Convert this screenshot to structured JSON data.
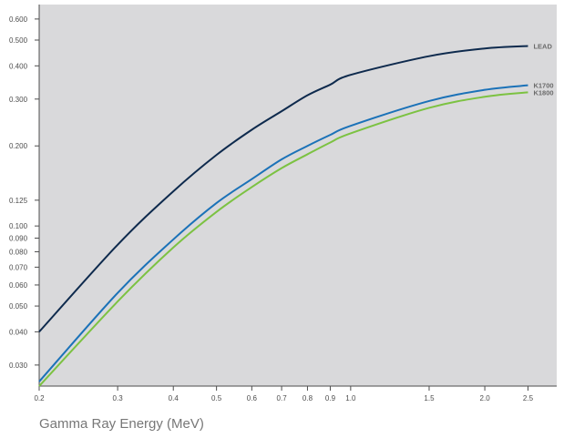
{
  "chart_data": {
    "type": "line",
    "title": "",
    "xlabel": "Gamma Ray Energy (MeV)",
    "ylabel": "",
    "x_scale": "log",
    "y_scale": "log",
    "xlim": [
      0.2,
      2.9
    ],
    "ylim": [
      0.025,
      0.68
    ],
    "grid": false,
    "background_color": "#d9d9db",
    "x_ticks": [
      {
        "value": 0.2,
        "label": "0.2"
      },
      {
        "value": 0.3,
        "label": "0.3"
      },
      {
        "value": 0.4,
        "label": "0.4"
      },
      {
        "value": 0.5,
        "label": "0.5"
      },
      {
        "value": 0.6,
        "label": "0.6"
      },
      {
        "value": 0.7,
        "label": "0.7"
      },
      {
        "value": 0.8,
        "label": "0.8"
      },
      {
        "value": 0.9,
        "label": "0.9"
      },
      {
        "value": 1.0,
        "label": "1.0"
      },
      {
        "value": 1.5,
        "label": "1.5"
      },
      {
        "value": 2.0,
        "label": "2.0"
      },
      {
        "value": 2.5,
        "label": "2.5"
      }
    ],
    "y_ticks": [
      {
        "value": 0.6,
        "label": "0.600"
      },
      {
        "value": 0.5,
        "label": "0.500"
      },
      {
        "value": 0.4,
        "label": "0.400"
      },
      {
        "value": 0.3,
        "label": "0.300"
      },
      {
        "value": 0.2,
        "label": "0.200"
      },
      {
        "value": 0.125,
        "label": "0.125"
      },
      {
        "value": 0.1,
        "label": "0.100"
      },
      {
        "value": 0.09,
        "label": "0.090"
      },
      {
        "value": 0.08,
        "label": "0.080"
      },
      {
        "value": 0.07,
        "label": "0.070"
      },
      {
        "value": 0.06,
        "label": "0.060"
      },
      {
        "value": 0.05,
        "label": "0.050"
      },
      {
        "value": 0.04,
        "label": "0.040"
      },
      {
        "value": 0.03,
        "label": "0.030"
      }
    ],
    "series": [
      {
        "name": "LEAD",
        "color": "#0e2a4d",
        "points": [
          [
            0.2,
            0.04
          ],
          [
            0.3,
            0.085
          ],
          [
            0.4,
            0.135
          ],
          [
            0.5,
            0.185
          ],
          [
            0.6,
            0.23
          ],
          [
            0.7,
            0.27
          ],
          [
            0.8,
            0.31
          ],
          [
            0.9,
            0.34
          ],
          [
            1.0,
            0.37
          ],
          [
            1.5,
            0.435
          ],
          [
            2.0,
            0.465
          ],
          [
            2.5,
            0.475
          ]
        ]
      },
      {
        "name": "K1700",
        "color": "#1b72b8",
        "points": [
          [
            0.2,
            0.026
          ],
          [
            0.3,
            0.056
          ],
          [
            0.4,
            0.089
          ],
          [
            0.5,
            0.122
          ],
          [
            0.6,
            0.15
          ],
          [
            0.7,
            0.178
          ],
          [
            0.8,
            0.2
          ],
          [
            0.9,
            0.22
          ],
          [
            1.0,
            0.238
          ],
          [
            1.5,
            0.295
          ],
          [
            2.0,
            0.325
          ],
          [
            2.5,
            0.338
          ]
        ]
      },
      {
        "name": "K1800",
        "color": "#7cc242",
        "points": [
          [
            0.2,
            0.024
          ],
          [
            0.3,
            0.052
          ],
          [
            0.4,
            0.083
          ],
          [
            0.5,
            0.113
          ],
          [
            0.6,
            0.14
          ],
          [
            0.7,
            0.165
          ],
          [
            0.8,
            0.186
          ],
          [
            0.9,
            0.206
          ],
          [
            1.0,
            0.223
          ],
          [
            1.5,
            0.278
          ],
          [
            2.0,
            0.306
          ],
          [
            2.5,
            0.318
          ]
        ]
      }
    ]
  }
}
